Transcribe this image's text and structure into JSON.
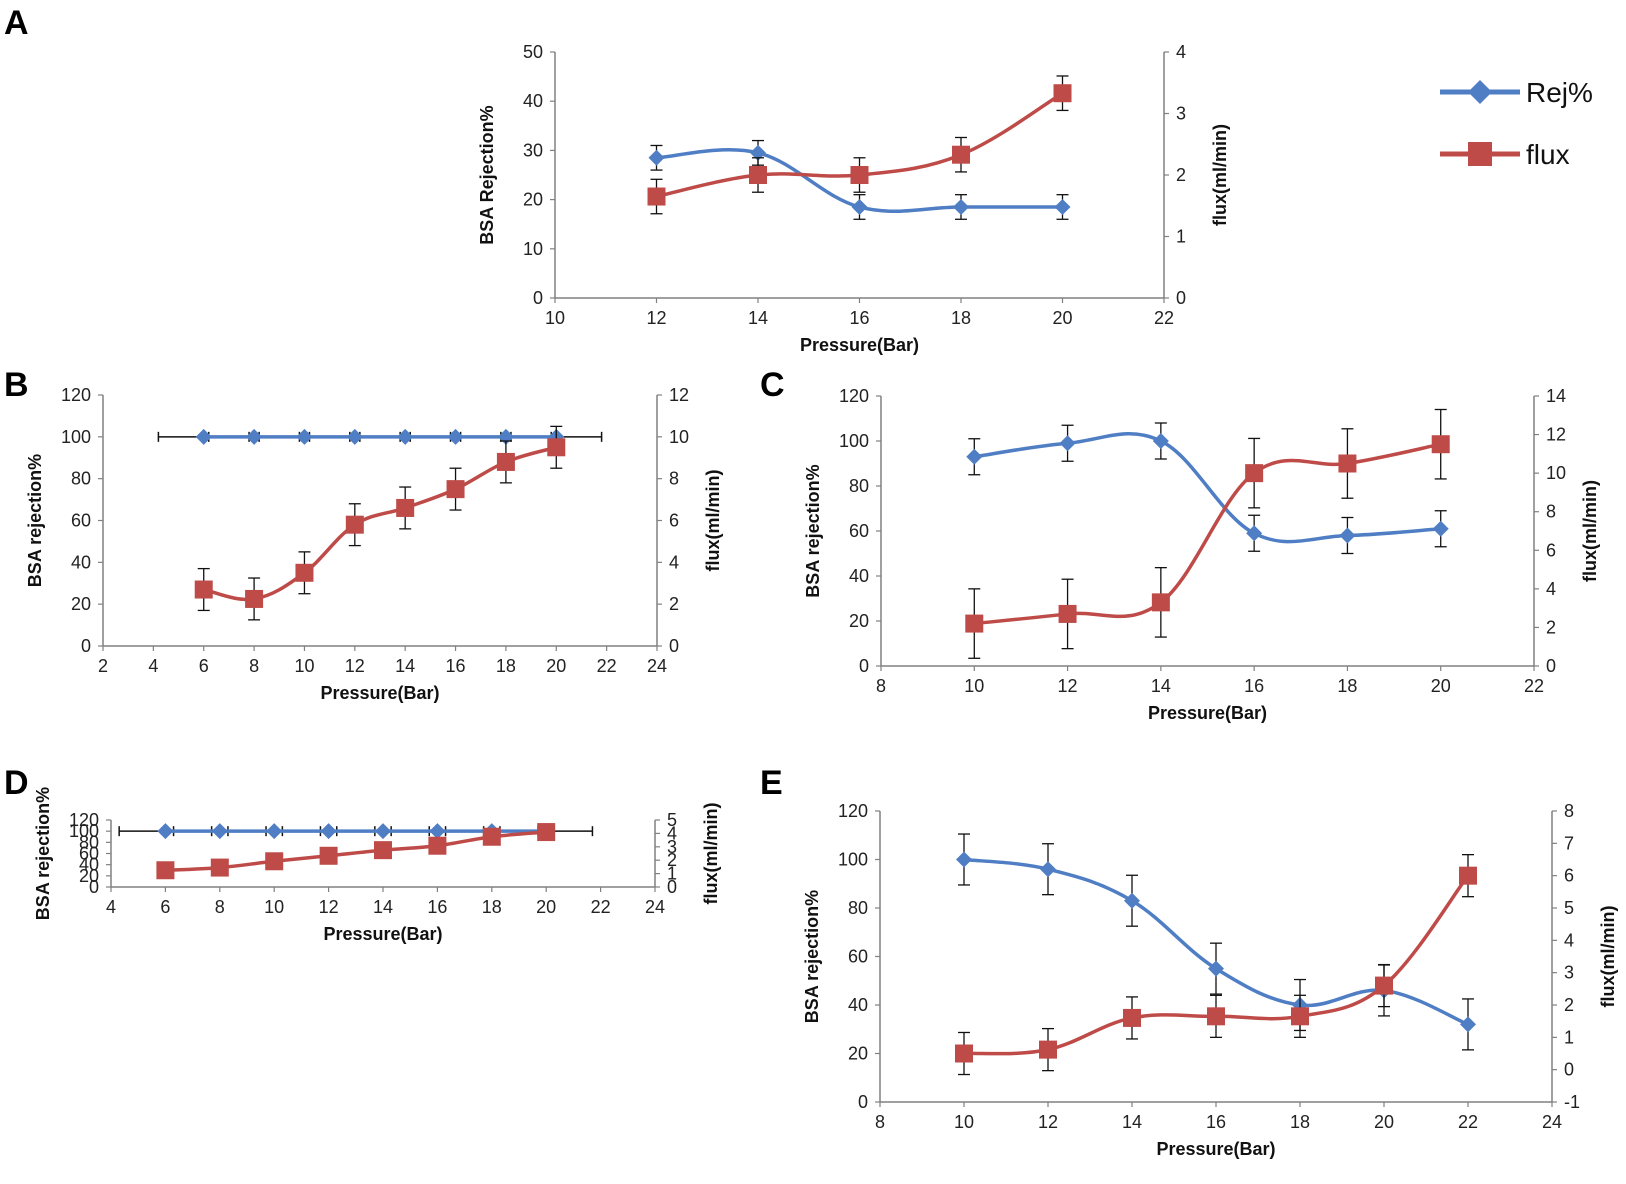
{
  "colors": {
    "rej": "#4f7ec4",
    "flux": "#be4b48",
    "axis": "#808080",
    "error": "#111111"
  },
  "legend": {
    "rej_label": "Rej%",
    "flux_label": "flux"
  },
  "chart_data": [
    {
      "panel": "A",
      "type": "line",
      "xlabel": "Pressure(Bar)",
      "ylabel": "BSA Rejection%",
      "y2label": "flux(ml/min)",
      "xlim": [
        10,
        22
      ],
      "xticks": [
        10,
        12,
        14,
        16,
        18,
        20,
        22
      ],
      "ylim": [
        0,
        50
      ],
      "yticks": [
        0,
        10,
        20,
        30,
        40,
        50
      ],
      "y2lim": [
        0,
        4
      ],
      "y2ticks": [
        0,
        1,
        2,
        3,
        4
      ],
      "series": [
        {
          "name": "Rej%",
          "axis": "left",
          "x": [
            12,
            14,
            16,
            18,
            20
          ],
          "values": [
            28.5,
            29.5,
            18.5,
            18.5,
            18.5
          ],
          "error": [
            2.5,
            2.5,
            2.5,
            2.5,
            2.5
          ]
        },
        {
          "name": "flux",
          "axis": "right",
          "x": [
            12,
            14,
            16,
            18,
            20
          ],
          "values": [
            1.65,
            2.0,
            2.0,
            2.33,
            3.33
          ],
          "error": [
            0.28,
            0.28,
            0.28,
            0.28,
            0.28
          ]
        }
      ]
    },
    {
      "panel": "B",
      "type": "line",
      "xlabel": "Pressure(Bar)",
      "ylabel": "BSA rejection%",
      "y2label": "flux(ml/min)",
      "xlim": [
        2,
        24
      ],
      "xticks": [
        2,
        4,
        6,
        8,
        10,
        12,
        14,
        16,
        18,
        20,
        22,
        24
      ],
      "ylim": [
        0,
        120
      ],
      "yticks": [
        0,
        20,
        40,
        60,
        80,
        100,
        120
      ],
      "y2lim": [
        0,
        12
      ],
      "y2ticks": [
        0,
        2,
        4,
        6,
        8,
        10,
        12
      ],
      "series": [
        {
          "name": "Rej%",
          "axis": "left",
          "x": [
            6,
            8,
            10,
            12,
            14,
            16,
            18,
            20
          ],
          "values": [
            100,
            100,
            100,
            100,
            100,
            100,
            100,
            100
          ],
          "xerror": [
            1.8,
            1.8,
            1.8,
            1.8,
            1.8,
            1.8,
            1.8,
            1.8
          ]
        },
        {
          "name": "flux",
          "axis": "right",
          "x": [
            6,
            8,
            10,
            12,
            14,
            16,
            18,
            20
          ],
          "values": [
            2.7,
            2.25,
            3.5,
            5.8,
            6.6,
            7.5,
            8.8,
            9.5
          ],
          "error": [
            1.0,
            1.0,
            1.0,
            1.0,
            1.0,
            1.0,
            1.0,
            1.0
          ]
        }
      ]
    },
    {
      "panel": "C",
      "type": "line",
      "xlabel": "Pressure(Bar)",
      "ylabel": "BSA rejection%",
      "y2label": "flux(ml/min)",
      "xlim": [
        8,
        22
      ],
      "xticks": [
        8,
        10,
        12,
        14,
        16,
        18,
        20,
        22
      ],
      "ylim": [
        0,
        120
      ],
      "yticks": [
        0,
        20,
        40,
        60,
        80,
        100,
        120
      ],
      "y2lim": [
        0,
        14
      ],
      "y2ticks": [
        0,
        2,
        4,
        6,
        8,
        10,
        12,
        14
      ],
      "series": [
        {
          "name": "Rej%",
          "axis": "left",
          "x": [
            10,
            12,
            14,
            16,
            18,
            20
          ],
          "values": [
            93,
            99,
            100,
            59,
            58,
            61
          ],
          "error": [
            8,
            8,
            8,
            8,
            8,
            8
          ]
        },
        {
          "name": "flux",
          "axis": "right",
          "x": [
            10,
            12,
            14,
            16,
            18,
            20
          ],
          "values": [
            2.2,
            2.7,
            3.3,
            10.0,
            10.5,
            11.5
          ],
          "error": [
            1.8,
            1.8,
            1.8,
            1.8,
            1.8,
            1.8
          ]
        }
      ]
    },
    {
      "panel": "D",
      "type": "line",
      "xlabel": "Pressure(Bar)",
      "ylabel": "BSA rejection%",
      "y2label": "flux(ml/min)",
      "xlim": [
        4,
        24
      ],
      "xticks": [
        4,
        6,
        8,
        10,
        12,
        14,
        16,
        18,
        20,
        22,
        24
      ],
      "ylim": [
        0,
        120
      ],
      "yticks": [
        0,
        20,
        40,
        60,
        80,
        100,
        120
      ],
      "y2lim": [
        0,
        5
      ],
      "y2ticks": [
        0,
        1,
        2,
        3,
        4,
        5
      ],
      "series": [
        {
          "name": "Rej%",
          "axis": "left",
          "x": [
            6,
            8,
            10,
            12,
            14,
            16,
            18,
            20
          ],
          "values": [
            100,
            100,
            100,
            100,
            100,
            100,
            100,
            100
          ],
          "xerror": [
            1.7,
            1.7,
            1.7,
            1.7,
            1.7,
            1.7,
            1.7,
            1.7
          ]
        },
        {
          "name": "flux",
          "axis": "right",
          "x": [
            6,
            8,
            10,
            12,
            14,
            16,
            18,
            20
          ],
          "values": [
            1.25,
            1.45,
            1.92,
            2.33,
            2.75,
            3.08,
            3.75,
            4.1
          ],
          "error": [
            0.37,
            0.37,
            0.37,
            0.37,
            0.37,
            0.37,
            0.37,
            0.37
          ]
        }
      ]
    },
    {
      "panel": "E",
      "type": "line",
      "xlabel": "Pressure(Bar)",
      "ylabel": "BSA rejection%",
      "y2label": "flux(ml/min)",
      "xlim": [
        8,
        24
      ],
      "xticks": [
        8,
        10,
        12,
        14,
        16,
        18,
        20,
        22,
        24
      ],
      "ylim": [
        0,
        120
      ],
      "yticks": [
        0,
        20,
        40,
        60,
        80,
        100,
        120
      ],
      "y2lim": [
        -1,
        8
      ],
      "y2ticks": [
        -1,
        0,
        1,
        2,
        3,
        4,
        5,
        6,
        7,
        8
      ],
      "series": [
        {
          "name": "Rej%",
          "axis": "left",
          "x": [
            10,
            12,
            14,
            16,
            18,
            20,
            22
          ],
          "values": [
            100,
            96,
            83,
            55,
            40,
            46,
            32
          ],
          "error": [
            10.5,
            10.5,
            10.5,
            10.5,
            10.5,
            10.5,
            10.5
          ]
        },
        {
          "name": "flux",
          "axis": "right",
          "x": [
            10,
            12,
            14,
            16,
            18,
            20,
            22
          ],
          "values": [
            0.5,
            0.62,
            1.6,
            1.65,
            1.65,
            2.6,
            6.0
          ],
          "error": [
            0.65,
            0.65,
            0.65,
            0.65,
            0.65,
            0.65,
            0.65
          ]
        }
      ]
    }
  ]
}
